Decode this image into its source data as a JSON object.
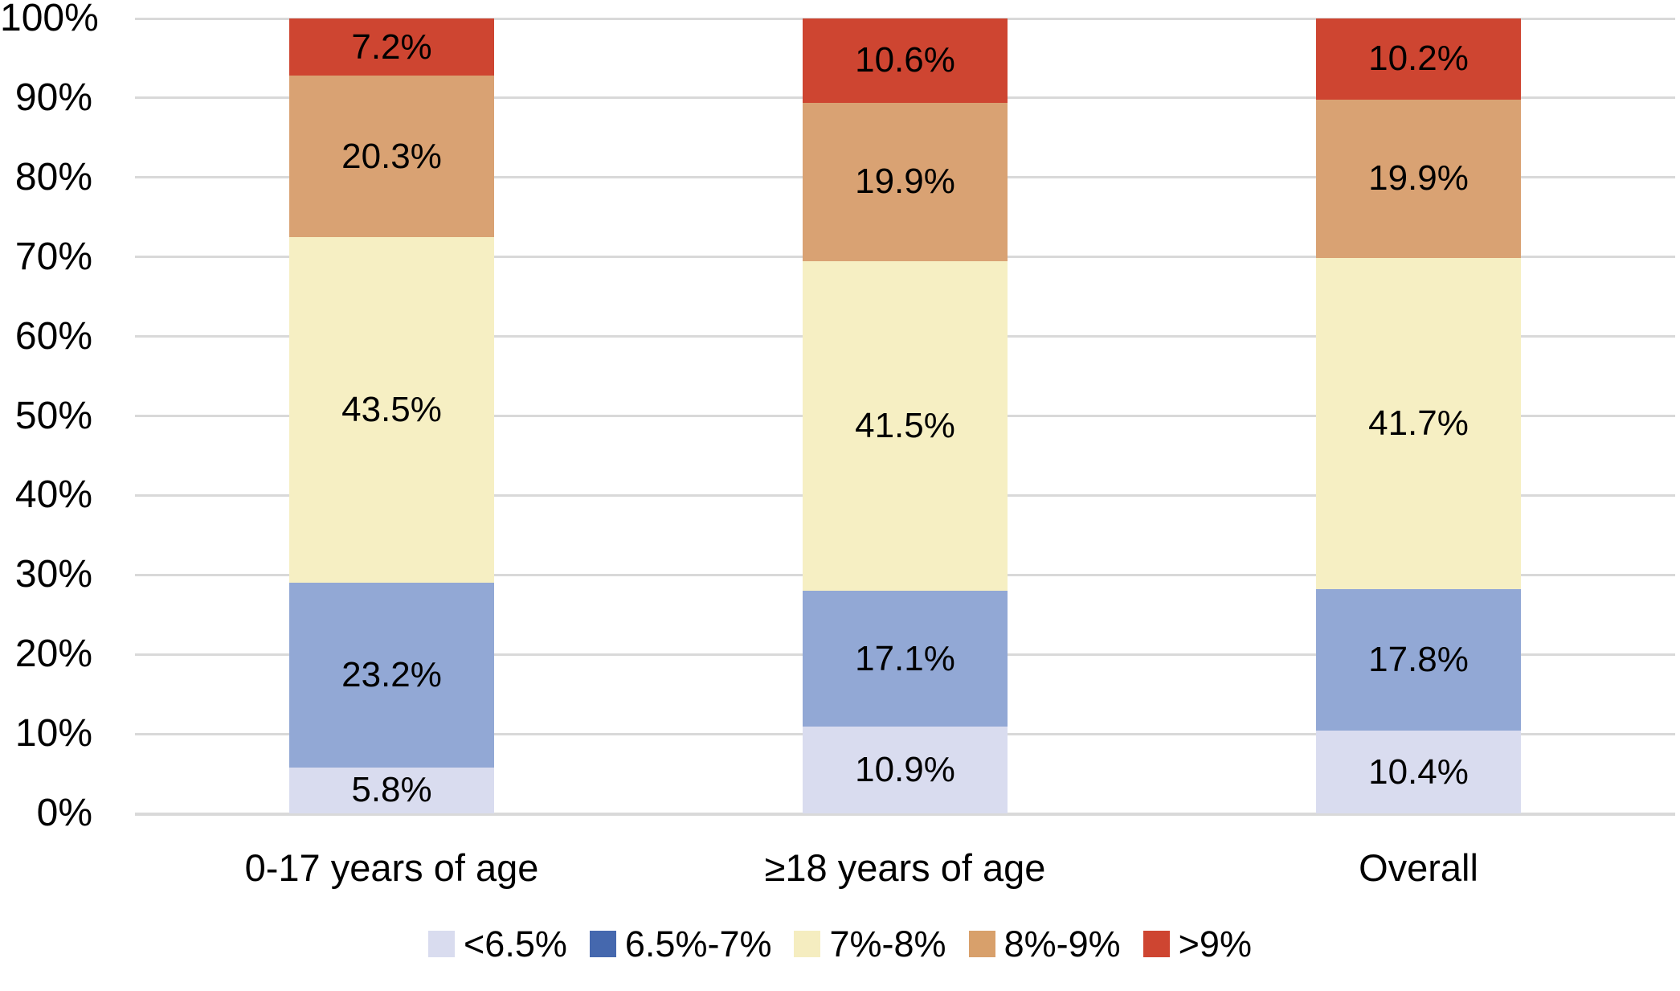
{
  "chart_data": {
    "type": "bar",
    "subtype": "stacked-100-percent-column",
    "title": "",
    "xlabel": "",
    "ylabel": "",
    "categories": [
      "0-17 years of age",
      "≥18 years of age",
      "Overall"
    ],
    "series": [
      {
        "name": "<6.5%",
        "bar_color": "#D9DCEF",
        "legend_color": "#D9DCEF",
        "values": [
          5.8,
          10.9,
          10.4
        ],
        "labels": [
          "5.8%",
          "10.9%",
          "10.4%"
        ]
      },
      {
        "name": "6.5%-7%",
        "bar_color": "#92A8D5",
        "legend_color": "#4568AE",
        "values": [
          23.2,
          17.1,
          17.8
        ],
        "labels": [
          "23.2%",
          "17.1%",
          "17.8%"
        ]
      },
      {
        "name": "7%-8%",
        "bar_color": "#F6EFC3",
        "legend_color": "#F5EDC0",
        "values": [
          43.5,
          41.5,
          41.7
        ],
        "labels": [
          "43.5%",
          "41.5%",
          "41.7%"
        ]
      },
      {
        "name": "8%-9%",
        "bar_color": "#D9A273",
        "legend_color": "#D8A06B",
        "values": [
          20.3,
          19.9,
          19.9
        ],
        "labels": [
          "20.3%",
          "19.9%",
          "19.9%"
        ]
      },
      {
        "name": ">9%",
        "bar_color": "#CE4531",
        "legend_color": "#CE4531",
        "values": [
          7.2,
          10.6,
          10.2
        ],
        "labels": [
          "7.2%",
          "10.6%",
          "10.2%"
        ]
      }
    ],
    "y_axis": {
      "min": 0,
      "max": 100,
      "step": 10,
      "tick_labels": [
        "0%",
        "10%",
        "20%",
        "30%",
        "40%",
        "50%",
        "60%",
        "70%",
        "80%",
        "90%",
        "100%"
      ]
    },
    "grid": true,
    "legend_position": "bottom",
    "legend_labels": [
      "<6.5%",
      "6.5%-7%",
      "7%-8%",
      "8%-9%",
      ">9%"
    ]
  },
  "colors": {
    "background": "#FFFFFF",
    "gridline": "#D9D9D9",
    "text": "#000000"
  }
}
